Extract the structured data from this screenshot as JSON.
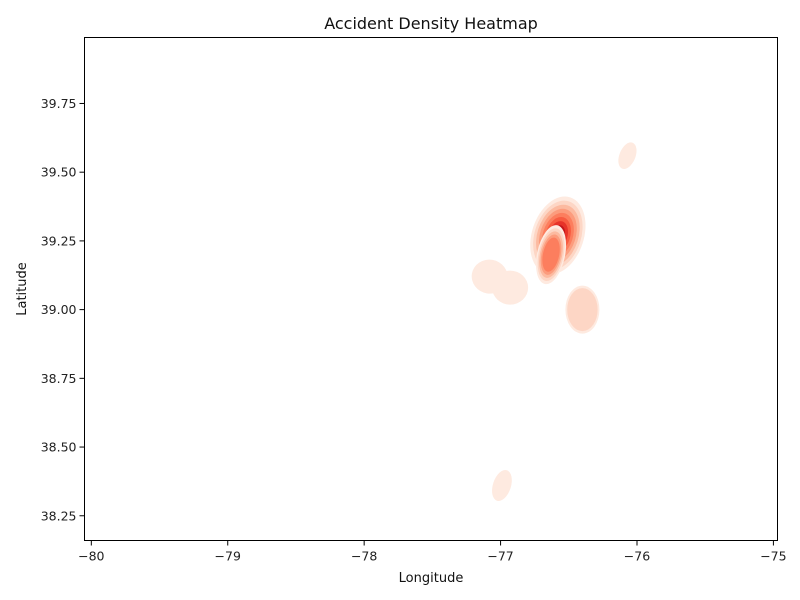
{
  "chart_data": {
    "type": "heatmap",
    "subtype": "kde-density",
    "title": "Accident Density Heatmap",
    "xlabel": "Longitude",
    "ylabel": "Latitude",
    "xlim": [
      -80.05,
      -74.97
    ],
    "ylim": [
      38.16,
      39.99
    ],
    "xticks": [
      -80,
      -79,
      -78,
      -77,
      -76,
      -75
    ],
    "xtick_labels": [
      "−80",
      "−79",
      "−78",
      "−77",
      "−76",
      "−75"
    ],
    "yticks": [
      38.25,
      38.5,
      38.75,
      39.0,
      39.25,
      39.5,
      39.75
    ],
    "ytick_labels": [
      "38.25",
      "38.50",
      "38.75",
      "39.00",
      "39.25",
      "39.50",
      "39.75"
    ],
    "grid": false,
    "colormap": "Reds",
    "hotspots": [
      {
        "lon": -76.58,
        "lat": 39.27,
        "density": 1.0
      },
      {
        "lon": -76.63,
        "lat": 39.2,
        "density": 0.55
      },
      {
        "lon": -76.4,
        "lat": 39.0,
        "density": 0.18
      },
      {
        "lon": -77.08,
        "lat": 39.12,
        "density": 0.1
      },
      {
        "lon": -76.93,
        "lat": 39.08,
        "density": 0.1
      },
      {
        "lon": -76.07,
        "lat": 39.56,
        "density": 0.08
      },
      {
        "lon": -76.99,
        "lat": 38.36,
        "density": 0.08
      }
    ]
  }
}
